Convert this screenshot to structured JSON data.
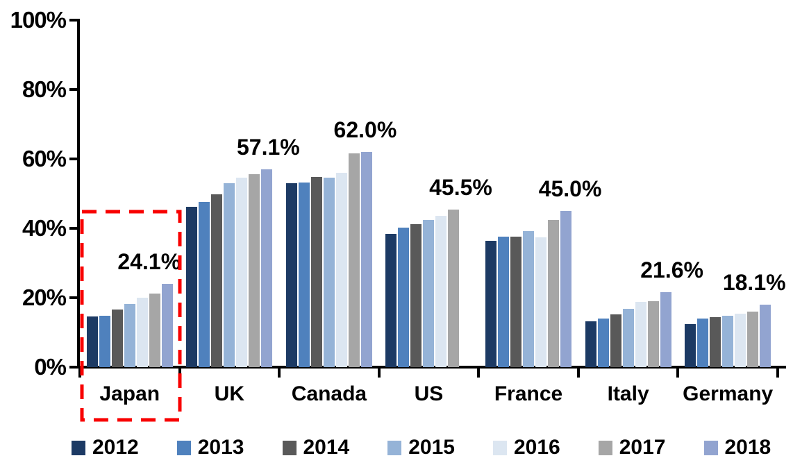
{
  "chart_data": {
    "type": "bar",
    "title": "",
    "xlabel": "",
    "ylabel": "",
    "categories": [
      "Japan",
      "UK",
      "Canada",
      "US",
      "France",
      "Italy",
      "Germany"
    ],
    "series": [
      {
        "name": "2012",
        "color": "#1C3A64",
        "values": [
          14.7,
          46.3,
          53.0,
          38.4,
          36.5,
          13.3,
          12.5
        ]
      },
      {
        "name": "2013",
        "color": "#4F81BD",
        "values": [
          14.9,
          47.7,
          53.3,
          40.3,
          37.7,
          14.1,
          14.0
        ]
      },
      {
        "name": "2014",
        "color": "#595959",
        "values": [
          16.6,
          49.9,
          54.8,
          41.2,
          37.6,
          15.2,
          14.4
        ]
      },
      {
        "name": "2015",
        "color": "#95B3D7",
        "values": [
          18.2,
          53.1,
          54.6,
          42.4,
          39.2,
          16.8,
          14.9
        ]
      },
      {
        "name": "2016",
        "color": "#DCE6F1",
        "values": [
          20.0,
          54.6,
          56.1,
          43.7,
          37.4,
          18.8,
          15.5
        ]
      },
      {
        "name": "2017",
        "color": "#A6A6A6",
        "values": [
          21.2,
          55.7,
          61.6,
          45.5,
          42.4,
          19.0,
          16.1
        ]
      },
      {
        "name": "2018",
        "color": "#92A4D0",
        "values": [
          24.1,
          57.1,
          62.0,
          null,
          45.0,
          21.6,
          18.1
        ]
      }
    ],
    "data_labels": [
      {
        "category": "Japan",
        "text": "24.1%"
      },
      {
        "category": "UK",
        "text": "57.1%"
      },
      {
        "category": "Canada",
        "text": "62.0%"
      },
      {
        "category": "US",
        "text": "45.5%"
      },
      {
        "category": "France",
        "text": "45.0%"
      },
      {
        "category": "Italy",
        "text": "21.6%"
      },
      {
        "category": "Germany",
        "text": "18.1%"
      }
    ],
    "ylim": [
      0,
      100
    ],
    "ytick_labels": [
      "0%",
      "20%",
      "40%",
      "60%",
      "80%",
      "100%"
    ],
    "grid": false,
    "legend_position": "bottom",
    "axis_color": "#000000",
    "highlight": {
      "category": "Japan",
      "style": "red-dashed-rectangle",
      "color": "#F80000"
    }
  }
}
